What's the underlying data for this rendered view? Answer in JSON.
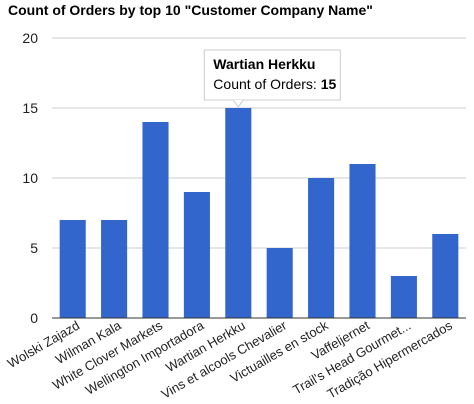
{
  "chart_data": {
    "type": "bar",
    "title": "Count of Orders by top 10 \"Customer Company Name\"",
    "categories": [
      "Wolski Zajazd",
      "Wilman Kala",
      "White Clover Markets",
      "Wellington Importadora",
      "Wartian Herkku",
      "Vins et alcools Chevalier",
      "Victuailles en stock",
      "Vaffeljernet",
      "Trail's Head Gourmet...",
      "Tradição Hipermercados"
    ],
    "series": [
      {
        "values": [
          7,
          7,
          14,
          9,
          15,
          5,
          10,
          11,
          3,
          6
        ]
      }
    ],
    "ylim": [
      0,
      20
    ],
    "yticks": [
      0,
      5,
      10,
      15,
      20
    ],
    "grid": true,
    "legend": "none",
    "colors": {
      "bar": "#3366cc"
    },
    "tooltip": {
      "category_index": 4,
      "title": "Wartian Herkku",
      "label": "Count of Orders: ",
      "value": "15"
    }
  }
}
